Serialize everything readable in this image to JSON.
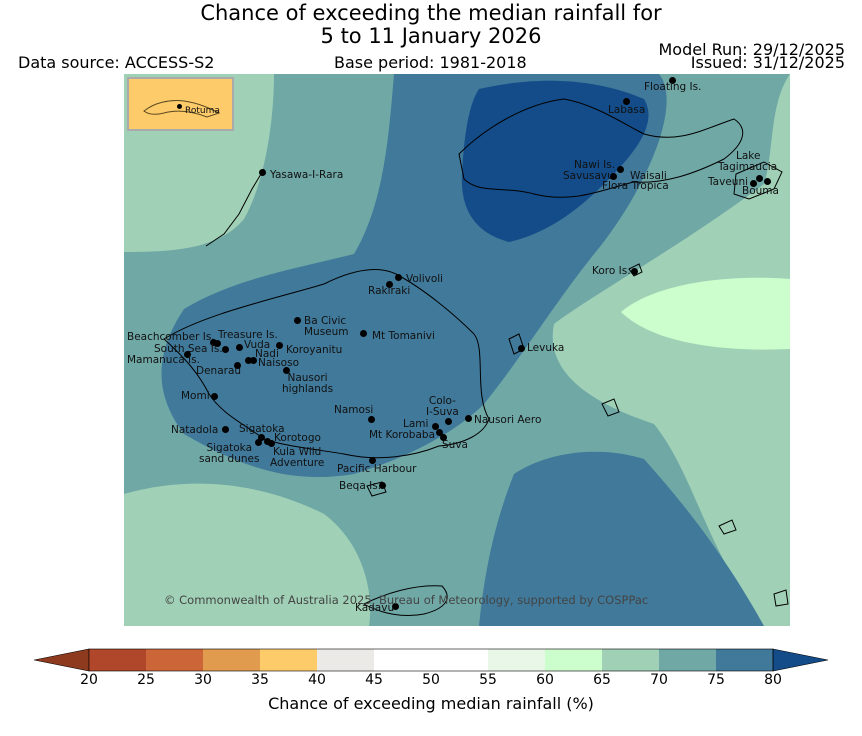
{
  "title": {
    "line1": "Chance of exceeding the median rainfall for",
    "line2": "5 to 11 January 2026"
  },
  "header": {
    "data_source": "Data source: ACCESS-S2",
    "base_period": "Base period: 1981-2018",
    "model_run": "Model Run: 29/12/2025",
    "issued": "Issued: 31/12/2025"
  },
  "inset": {
    "label": "Rotuma",
    "fill": "#fecb6a"
  },
  "places": [
    {
      "name": "Floating Is.",
      "line2": ""
    },
    {
      "name": "Labasa",
      "line2": ""
    },
    {
      "name": "Yasawa-I-Rara",
      "line2": ""
    },
    {
      "name": "Nawi Is.",
      "line2": ""
    },
    {
      "name": "Savusavu",
      "line2": ""
    },
    {
      "name": "Waisali",
      "line2": ""
    },
    {
      "name": "Flora Tropica",
      "line2": ""
    },
    {
      "name": "Lake",
      "line2": "Tagimaucia"
    },
    {
      "name": "Taveuni",
      "line2": ""
    },
    {
      "name": "Bouma",
      "line2": ""
    },
    {
      "name": "Koro Is.",
      "line2": ""
    },
    {
      "name": "Volivoli",
      "line2": ""
    },
    {
      "name": "Rakiraki",
      "line2": ""
    },
    {
      "name": "Ba Civic",
      "line2": "Museum"
    },
    {
      "name": "Mt Tomanivi",
      "line2": ""
    },
    {
      "name": "Beachcomber Is.",
      "line2": ""
    },
    {
      "name": "Treasure Is.",
      "line2": ""
    },
    {
      "name": "South Sea Is.",
      "line2": ""
    },
    {
      "name": "Vuda",
      "line2": ""
    },
    {
      "name": "Koroyanitu",
      "line2": ""
    },
    {
      "name": "Mamanuca Is.",
      "line2": ""
    },
    {
      "name": "Nadi",
      "line2": ""
    },
    {
      "name": "Naisoso",
      "line2": ""
    },
    {
      "name": "Denarau",
      "line2": ""
    },
    {
      "name": "Nausori",
      "line2": "highlands"
    },
    {
      "name": "Levuka",
      "line2": ""
    },
    {
      "name": "Momi",
      "line2": ""
    },
    {
      "name": "Namosi",
      "line2": ""
    },
    {
      "name": "Colo-",
      "line2": "I-Suva"
    },
    {
      "name": "Nausori Aero",
      "line2": ""
    },
    {
      "name": "Lami",
      "line2": ""
    },
    {
      "name": "Mt Korobaba",
      "line2": ""
    },
    {
      "name": "Suva",
      "line2": ""
    },
    {
      "name": "Natadola",
      "line2": ""
    },
    {
      "name": "Sigatoka",
      "line2": ""
    },
    {
      "name": "Korotogo",
      "line2": ""
    },
    {
      "name": "Sigatoka",
      "line2": "sand dunes"
    },
    {
      "name": "Kula Wild",
      "line2": "Adventure"
    },
    {
      "name": "Pacific Harbour",
      "line2": ""
    },
    {
      "name": "Beqa Is.",
      "line2": ""
    },
    {
      "name": "Kadavu",
      "line2": ""
    }
  ],
  "copyright": "© Commonwealth of Australia 2025, Bureau of Meteorology, supported by COSPPac",
  "legend": {
    "label": "Chance of exceeding median rainfall (%)",
    "ticks": [
      "20",
      "25",
      "30",
      "35",
      "40",
      "45",
      "50",
      "55",
      "60",
      "65",
      "70",
      "75",
      "80"
    ],
    "colors": [
      "#8e3a1e",
      "#b0472a",
      "#cc6638",
      "#e09b4e",
      "#fecb6a",
      "#ebeae6",
      "#ffffff",
      "#ffffff",
      "#e9f7e9",
      "#ccfdcc",
      "#a0d1b6",
      "#70a8a6",
      "#40799a",
      "#134c89"
    ]
  },
  "map_colors": {
    "c60_65": "#ccfdcc",
    "c65_70": "#a0d1b6",
    "c70_75": "#70a8a6",
    "c75_80": "#40799a",
    "c80": "#134c89"
  }
}
